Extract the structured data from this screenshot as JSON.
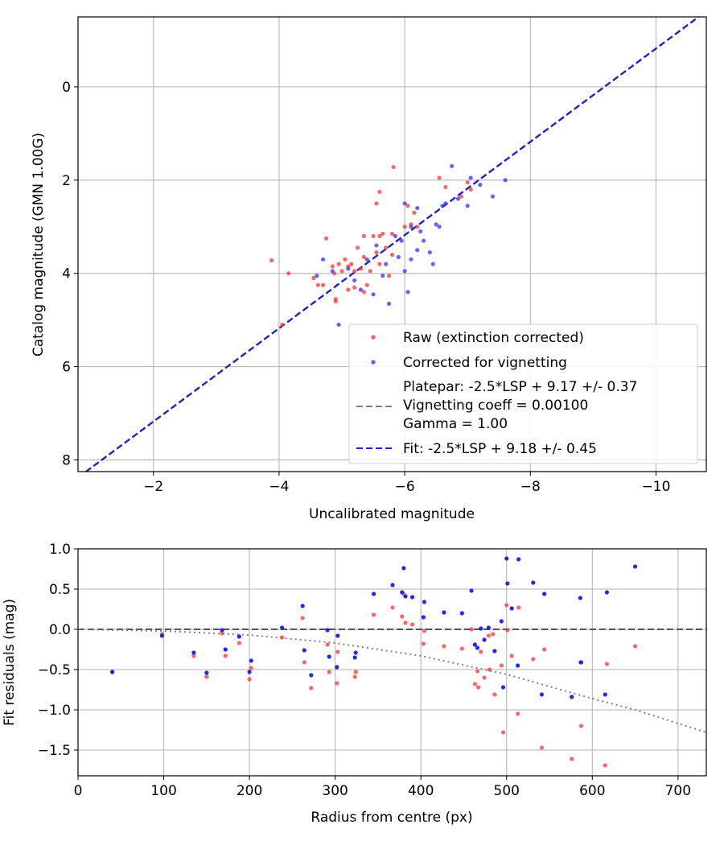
{
  "chart_data": [
    {
      "type": "scatter",
      "title": "",
      "xlabel": "Uncalibrated magnitude",
      "ylabel": "Catalog magnitude (GMN 1.00G)",
      "xlim": [
        -0.8,
        -10.8
      ],
      "ylim": [
        8.25,
        -1.5
      ],
      "xticks": [
        -2,
        -4,
        -6,
        -8,
        -10
      ],
      "xtick_labels": [
        "−2",
        "−4",
        "−6",
        "−8",
        "−10"
      ],
      "yticks": [
        0,
        2,
        4,
        6,
        8
      ],
      "ytick_labels": [
        "0",
        "2",
        "4",
        "6",
        "8"
      ],
      "grid": true,
      "legend_position": "lower-right",
      "series": [
        {
          "name": "Raw (extinction corrected)",
          "color": "#ff3333",
          "points": [
            [
              -3.88,
              3.72
            ],
            [
              -4.15,
              4.0
            ],
            [
              -4.05,
              5.1
            ],
            [
              -4.55,
              4.1
            ],
            [
              -4.7,
              4.25
            ],
            [
              -4.62,
              4.25
            ],
            [
              -4.75,
              3.25
            ],
            [
              -4.85,
              3.85
            ],
            [
              -4.9,
              4.55
            ],
            [
              -4.88,
              4.0
            ],
            [
              -4.95,
              3.8
            ],
            [
              -5.0,
              3.95
            ],
            [
              -5.05,
              3.7
            ],
            [
              -5.1,
              3.85
            ],
            [
              -5.15,
              3.8
            ],
            [
              -5.2,
              3.95
            ],
            [
              -5.2,
              4.3
            ],
            [
              -5.25,
              3.45
            ],
            [
              -5.3,
              3.9
            ],
            [
              -5.35,
              3.2
            ],
            [
              -5.35,
              3.65
            ],
            [
              -5.4,
              4.25
            ],
            [
              -5.45,
              3.95
            ],
            [
              -5.5,
              3.2
            ],
            [
              -5.55,
              3.55
            ],
            [
              -5.6,
              3.2
            ],
            [
              -5.6,
              3.8
            ],
            [
              -5.65,
              3.15
            ],
            [
              -5.7,
              3.45
            ],
            [
              -5.75,
              4.05
            ],
            [
              -5.8,
              3.15
            ],
            [
              -5.8,
              3.6
            ],
            [
              -5.82,
              1.72
            ],
            [
              -5.55,
              2.5
            ],
            [
              -5.6,
              2.25
            ],
            [
              -6.0,
              3.0
            ],
            [
              -6.05,
              2.55
            ],
            [
              -6.1,
              2.95
            ],
            [
              -6.15,
              2.7
            ],
            [
              -6.2,
              3.0
            ],
            [
              -6.55,
              1.95
            ],
            [
              -6.65,
              2.15
            ],
            [
              -6.9,
              2.35
            ],
            [
              -7.0,
              2.05
            ],
            [
              -7.05,
              2.2
            ],
            [
              -5.1,
              4.35
            ],
            [
              -4.9,
              4.6
            ],
            [
              -5.35,
              4.4
            ]
          ]
        },
        {
          "name": "Corrected for vignetting",
          "color": "#3333ff",
          "points": [
            [
              -4.6,
              4.05
            ],
            [
              -4.7,
              3.7
            ],
            [
              -4.85,
              3.95
            ],
            [
              -4.95,
              5.1
            ],
            [
              -5.1,
              3.9
            ],
            [
              -5.2,
              4.15
            ],
            [
              -5.3,
              4.35
            ],
            [
              -5.4,
              3.7
            ],
            [
              -5.5,
              4.45
            ],
            [
              -5.55,
              3.4
            ],
            [
              -5.65,
              4.05
            ],
            [
              -5.7,
              3.8
            ],
            [
              -5.75,
              4.65
            ],
            [
              -5.85,
              3.2
            ],
            [
              -5.9,
              3.65
            ],
            [
              -5.95,
              3.3
            ],
            [
              -6.0,
              3.95
            ],
            [
              -6.05,
              4.4
            ],
            [
              -6.1,
              3.7
            ],
            [
              -6.2,
              3.5
            ],
            [
              -6.25,
              3.1
            ],
            [
              -6.3,
              3.3
            ],
            [
              -6.4,
              3.55
            ],
            [
              -6.45,
              3.8
            ],
            [
              -6.0,
              2.5
            ],
            [
              -6.2,
              2.6
            ],
            [
              -6.5,
              2.95
            ],
            [
              -6.55,
              3.0
            ],
            [
              -6.6,
              2.55
            ],
            [
              -6.75,
              1.7
            ],
            [
              -6.85,
              2.4
            ],
            [
              -7.0,
              2.55
            ],
            [
              -7.05,
              1.95
            ],
            [
              -7.2,
              2.1
            ],
            [
              -7.4,
              2.35
            ],
            [
              -7.6,
              2.0
            ],
            [
              -6.1,
              3.0
            ],
            [
              -6.65,
              2.5
            ]
          ]
        }
      ],
      "lines": [
        {
          "name": "Platepar: -2.5*LSP + 9.17 +/- 0.37",
          "name_lines": [
            "Platepar: -2.5*LSP + 9.17 +/- 0.37",
            "Vignetting coeff = 0.00100",
            "Gamma = 1.00"
          ],
          "slope": 1.0,
          "intercept": 9.17,
          "color": "#808080",
          "style": "dashed"
        },
        {
          "name": "Fit: -2.5*LSP + 9.18 +/- 0.45",
          "slope": 1.0,
          "intercept": 9.18,
          "color": "#2222cc",
          "style": "dashed"
        }
      ]
    },
    {
      "type": "scatter",
      "title": "",
      "xlabel": "Radius from centre (px)",
      "ylabel": "Fit residuals (mag)",
      "xlim": [
        0,
        733
      ],
      "ylim": [
        -1.82,
        1.0
      ],
      "xticks": [
        0,
        100,
        200,
        300,
        400,
        500,
        600,
        700
      ],
      "xtick_labels": [
        "0",
        "100",
        "200",
        "300",
        "400",
        "500",
        "600",
        "700"
      ],
      "yticks": [
        1.0,
        0.5,
        0.0,
        -0.5,
        -1.0,
        -1.5
      ],
      "ytick_labels": [
        "1.0",
        "0.5",
        "0.0",
        "−0.5",
        "−1.0",
        "−1.5"
      ],
      "grid": true,
      "zero_line": {
        "y": 0.0,
        "color": "#555555",
        "style": "dashed"
      },
      "vignetting_curve": {
        "color": "#808080",
        "style": "dotted",
        "x": [
          0,
          100,
          200,
          300,
          400,
          500,
          600,
          650,
          733
        ],
        "y": [
          0.0,
          -0.02,
          -0.07,
          -0.17,
          -0.33,
          -0.56,
          -0.86,
          -1.0,
          -1.28
        ]
      },
      "series": [
        {
          "name": "Raw (extinction corrected)",
          "color": "#ff3333",
          "points": [
            [
              40,
              -0.53
            ],
            [
              98,
              -0.06
            ],
            [
              135,
              -0.33
            ],
            [
              150,
              -0.59
            ],
            [
              168,
              -0.05
            ],
            [
              172,
              -0.33
            ],
            [
              188,
              -0.17
            ],
            [
              200,
              -0.62
            ],
            [
              202,
              -0.48
            ],
            [
              238,
              -0.1
            ],
            [
              262,
              0.14
            ],
            [
              264,
              -0.41
            ],
            [
              272,
              -0.73
            ],
            [
              291,
              -0.19
            ],
            [
              293,
              -0.53
            ],
            [
              302,
              -0.67
            ],
            [
              303,
              -0.28
            ],
            [
              323,
              -0.59
            ],
            [
              324,
              -0.53
            ],
            [
              345,
              0.18
            ],
            [
              367,
              0.27
            ],
            [
              378,
              0.16
            ],
            [
              380,
              0.44
            ],
            [
              382,
              0.08
            ],
            [
              390,
              0.06
            ],
            [
              403,
              -0.18
            ],
            [
              404,
              -0.02
            ],
            [
              427,
              -0.21
            ],
            [
              448,
              -0.24
            ],
            [
              459,
              0.0
            ],
            [
              463,
              -0.68
            ],
            [
              466,
              -0.52
            ],
            [
              467,
              -0.72
            ],
            [
              470,
              -0.28
            ],
            [
              474,
              -0.6
            ],
            [
              479,
              -0.08
            ],
            [
              480,
              -0.5
            ],
            [
              484,
              -0.06
            ],
            [
              486,
              -0.81
            ],
            [
              494,
              -0.45
            ],
            [
              496,
              -1.28
            ],
            [
              500,
              0.3
            ],
            [
              501,
              -0.01
            ],
            [
              506,
              -0.33
            ],
            [
              513,
              -1.05
            ],
            [
              514,
              0.27
            ],
            [
              531,
              -0.37
            ],
            [
              541,
              -1.47
            ],
            [
              544,
              -0.25
            ],
            [
              576,
              -1.61
            ],
            [
              586,
              -0.41
            ],
            [
              587,
              -1.2
            ],
            [
              615,
              -1.69
            ],
            [
              617,
              -0.43
            ],
            [
              650,
              -0.21
            ]
          ]
        },
        {
          "name": "Corrected for vignetting",
          "color": "#1a1aee",
          "points": [
            [
              40,
              -0.53
            ],
            [
              98,
              -0.08
            ],
            [
              135,
              -0.29
            ],
            [
              150,
              -0.54
            ],
            [
              168,
              -0.01
            ],
            [
              172,
              -0.25
            ],
            [
              188,
              -0.09
            ],
            [
              200,
              -0.53
            ],
            [
              202,
              -0.39
            ],
            [
              238,
              0.02
            ],
            [
              262,
              0.29
            ],
            [
              264,
              -0.26
            ],
            [
              272,
              -0.57
            ],
            [
              291,
              -0.01
            ],
            [
              293,
              -0.34
            ],
            [
              302,
              -0.47
            ],
            [
              303,
              -0.08
            ],
            [
              323,
              -0.35
            ],
            [
              324,
              -0.29
            ],
            [
              345,
              0.44
            ],
            [
              367,
              0.55
            ],
            [
              378,
              0.46
            ],
            [
              380,
              0.76
            ],
            [
              382,
              0.41
            ],
            [
              390,
              0.4
            ],
            [
              403,
              0.15
            ],
            [
              404,
              0.34
            ],
            [
              427,
              0.21
            ],
            [
              448,
              0.2
            ],
            [
              459,
              0.48
            ],
            [
              463,
              -0.19
            ],
            [
              466,
              -0.23
            ],
            [
              470,
              0.01
            ],
            [
              474,
              -0.13
            ],
            [
              479,
              0.02
            ],
            [
              486,
              -0.27
            ],
            [
              494,
              0.1
            ],
            [
              496,
              -0.72
            ],
            [
              500,
              0.88
            ],
            [
              501,
              0.57
            ],
            [
              506,
              0.26
            ],
            [
              513,
              -0.45
            ],
            [
              514,
              0.87
            ],
            [
              531,
              0.58
            ],
            [
              541,
              -0.81
            ],
            [
              544,
              0.44
            ],
            [
              576,
              -0.84
            ],
            [
              586,
              0.39
            ],
            [
              587,
              -0.41
            ],
            [
              615,
              -0.81
            ],
            [
              617,
              0.46
            ],
            [
              650,
              0.78
            ]
          ]
        }
      ]
    }
  ]
}
